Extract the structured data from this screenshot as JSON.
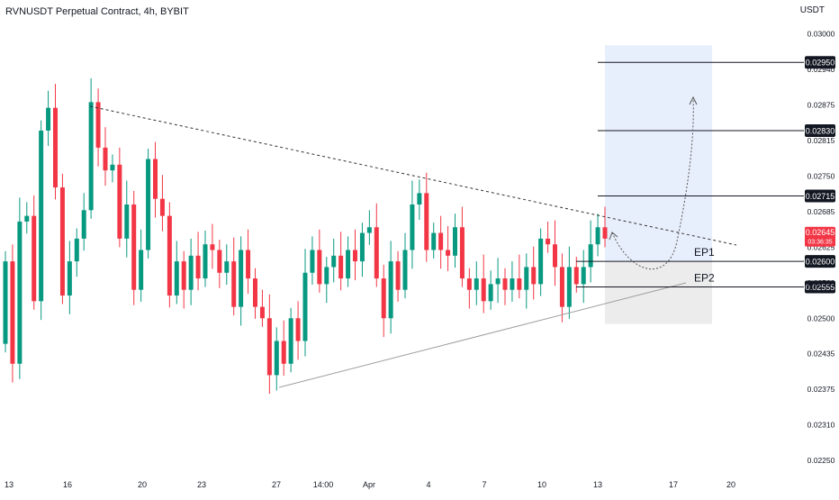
{
  "header": {
    "title": "RVNUSDT Perpetual Contract, 4h, BYBIT",
    "unit": "USDT"
  },
  "chart_data": {
    "type": "candlestick",
    "title": "RVNUSDT Perpetual Contract, 4h, BYBIT",
    "xlabel": "",
    "ylabel": "USDT",
    "ylim": [
      0.0222,
      0.0302
    ],
    "grid": false,
    "x_tick_labels": [
      "13",
      "16",
      "20",
      "23",
      "27",
      "14:00",
      "Apr",
      "4",
      "7",
      "10",
      "13",
      "17",
      "20"
    ],
    "y_tick_labels": [
      "0.02250",
      "0.02310",
      "0.02375",
      "0.02435",
      "0.02500",
      "0.02560",
      "0.02625",
      "0.02685",
      "0.02750",
      "0.02815",
      "0.02875",
      "0.02940",
      "0.03000"
    ],
    "current_price": {
      "value": "0.02645",
      "countdown": "03:36:35",
      "color": "#f23645"
    },
    "level_labels": [
      "0.02950",
      "0.02830",
      "0.02715",
      "0.02600",
      "0.02555"
    ],
    "annotations": [
      "EP1",
      "EP2"
    ],
    "colors": {
      "up": "#089981",
      "down": "#f23645",
      "target_zone": "#e8effc",
      "stop_zone": "#ececec"
    },
    "price_path": [
      [
        0.02455,
        0.026
      ],
      [
        0.026,
        0.0242
      ],
      [
        0.0242,
        0.0267
      ],
      [
        0.0267,
        0.0268
      ],
      [
        0.0268,
        0.0253
      ],
      [
        0.0253,
        0.0283
      ],
      [
        0.0283,
        0.0287
      ],
      [
        0.0287,
        0.0273
      ],
      [
        0.0273,
        0.0254
      ],
      [
        0.0254,
        0.026
      ],
      [
        0.026,
        0.0264
      ],
      [
        0.0264,
        0.0269
      ],
      [
        0.0269,
        0.0288
      ],
      [
        0.0288,
        0.028
      ],
      [
        0.028,
        0.0276
      ],
      [
        0.0276,
        0.0277
      ],
      [
        0.0277,
        0.0264
      ],
      [
        0.0264,
        0.027
      ],
      [
        0.027,
        0.0255
      ],
      [
        0.0255,
        0.0262
      ],
      [
        0.0262,
        0.0278
      ],
      [
        0.0278,
        0.0271
      ],
      [
        0.0271,
        0.0268
      ],
      [
        0.0268,
        0.0254
      ],
      [
        0.0254,
        0.026
      ],
      [
        0.026,
        0.0255
      ],
      [
        0.0255,
        0.0261
      ],
      [
        0.0261,
        0.0257
      ],
      [
        0.0257,
        0.0263
      ],
      [
        0.0263,
        0.0262
      ],
      [
        0.0262,
        0.0258
      ],
      [
        0.0258,
        0.026
      ],
      [
        0.026,
        0.0252
      ],
      [
        0.0252,
        0.0262
      ],
      [
        0.0262,
        0.0257
      ],
      [
        0.0257,
        0.0252
      ],
      [
        0.0252,
        0.025
      ],
      [
        0.025,
        0.024
      ],
      [
        0.024,
        0.0246
      ],
      [
        0.0246,
        0.0242
      ],
      [
        0.0242,
        0.025
      ],
      [
        0.025,
        0.0246
      ],
      [
        0.0246,
        0.0258
      ],
      [
        0.0258,
        0.0262
      ],
      [
        0.0262,
        0.0256
      ],
      [
        0.0256,
        0.0259
      ],
      [
        0.0259,
        0.0261
      ],
      [
        0.0261,
        0.0257
      ],
      [
        0.0257,
        0.0262
      ],
      [
        0.0262,
        0.026
      ],
      [
        0.026,
        0.0265
      ],
      [
        0.0265,
        0.0266
      ],
      [
        0.0266,
        0.0257
      ],
      [
        0.0257,
        0.025
      ],
      [
        0.025,
        0.026
      ],
      [
        0.026,
        0.0255
      ],
      [
        0.0255,
        0.0262
      ],
      [
        0.0262,
        0.027
      ],
      [
        0.027,
        0.0272
      ],
      [
        0.0272,
        0.0262
      ],
      [
        0.0262,
        0.0265
      ],
      [
        0.0265,
        0.0262
      ],
      [
        0.0262,
        0.0261
      ],
      [
        0.0261,
        0.0266
      ],
      [
        0.0266,
        0.0257
      ],
      [
        0.0257,
        0.0255
      ],
      [
        0.0255,
        0.0257
      ],
      [
        0.0257,
        0.0253
      ],
      [
        0.0253,
        0.0256
      ],
      [
        0.0256,
        0.0257
      ],
      [
        0.0257,
        0.0255
      ],
      [
        0.0255,
        0.0257
      ],
      [
        0.0257,
        0.0255
      ],
      [
        0.0255,
        0.0259
      ],
      [
        0.0259,
        0.0256
      ],
      [
        0.0256,
        0.0264
      ],
      [
        0.0264,
        0.0263
      ],
      [
        0.0263,
        0.0259
      ],
      [
        0.0259,
        0.0252
      ],
      [
        0.0252,
        0.0259
      ],
      [
        0.0259,
        0.0256
      ],
      [
        0.0256,
        0.0259
      ],
      [
        0.0259,
        0.0263
      ],
      [
        0.0263,
        0.0266
      ],
      [
        0.0266,
        0.0264
      ]
    ]
  }
}
